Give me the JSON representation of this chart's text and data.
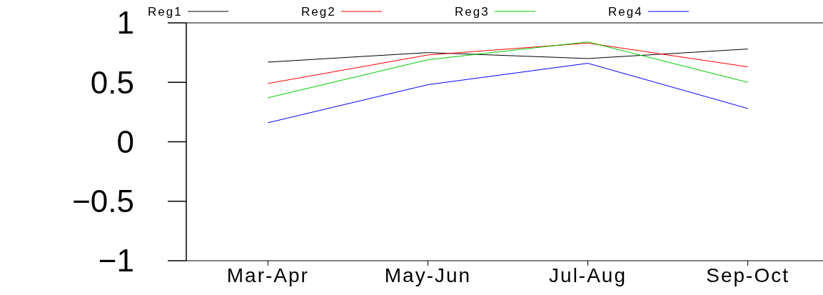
{
  "chart_data": {
    "type": "line",
    "categories": [
      "Mar-Apr",
      "May-Jun",
      "Jul-Aug",
      "Sep-Oct"
    ],
    "series": [
      {
        "name": "Reg1",
        "color": "#000000",
        "values": [
          0.67,
          0.75,
          0.7,
          0.78
        ]
      },
      {
        "name": "Reg2",
        "color": "#ff0000",
        "values": [
          0.49,
          0.73,
          0.83,
          0.63
        ]
      },
      {
        "name": "Reg3",
        "color": "#00cc00",
        "values": [
          0.37,
          0.69,
          0.84,
          0.5
        ]
      },
      {
        "name": "Reg4",
        "color": "#0000ff",
        "values": [
          0.16,
          0.48,
          0.66,
          0.28
        ]
      }
    ],
    "ylim": [
      -1,
      1
    ],
    "yticks": [
      1,
      0.5,
      0,
      {
        "value": -0.5,
        "label": "−0.5"
      },
      {
        "value": -1,
        "label": "−1"
      }
    ],
    "legend": "top",
    "marker": "none",
    "line_style": "solid",
    "grid": false
  }
}
